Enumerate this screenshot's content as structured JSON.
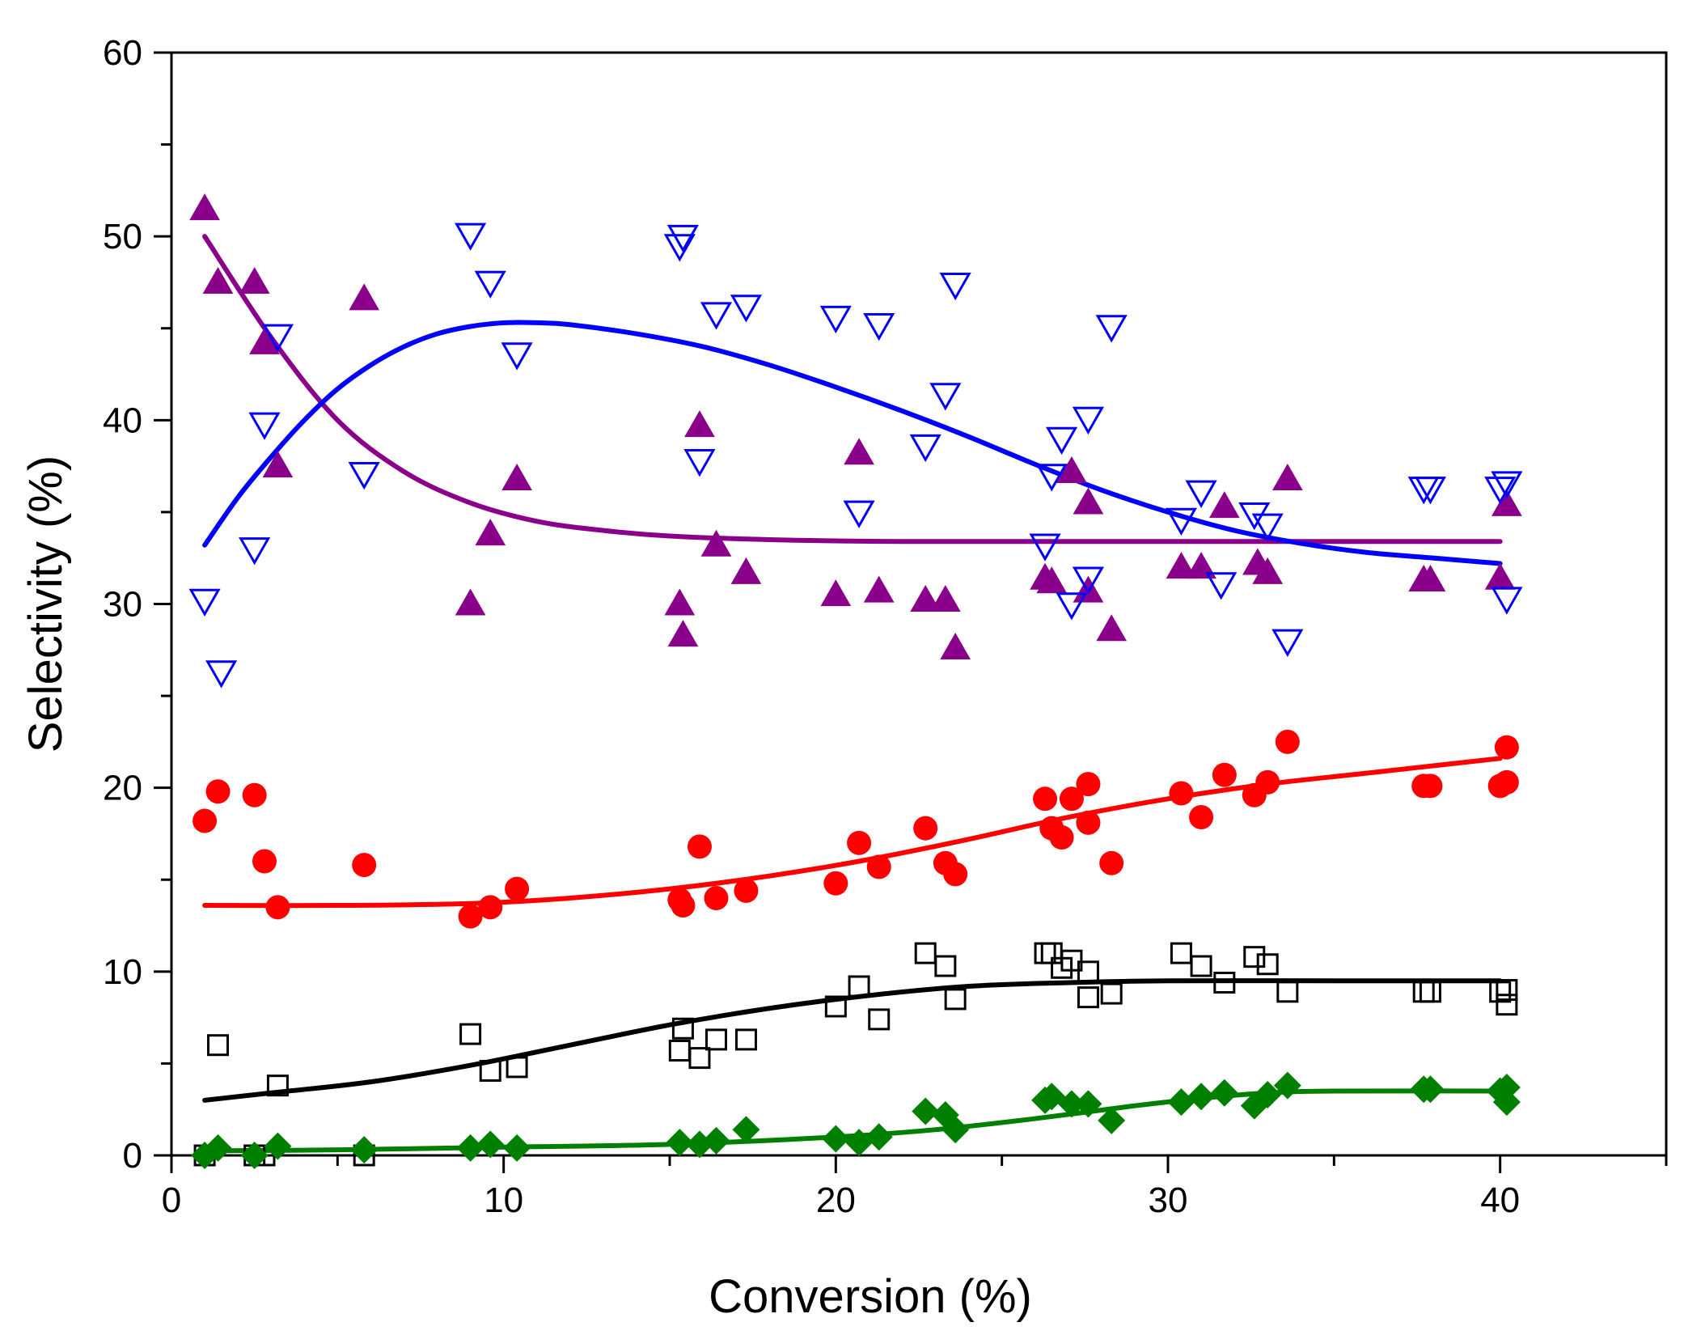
{
  "chart_data": {
    "type": "scatter",
    "title": "",
    "xlabel": "Conversion (%)",
    "ylabel": "Selectivity (%)",
    "xlim": [
      0,
      45
    ],
    "ylim": [
      0,
      60
    ],
    "xticks": [
      0,
      10,
      20,
      30,
      40
    ],
    "yticks": [
      0,
      10,
      20,
      30,
      40,
      50,
      60
    ],
    "grid": false,
    "legend": "none",
    "series": [
      {
        "name": "purple-filled-triangle",
        "marker": "triangle-up-filled",
        "color": "#8B008B",
        "points": [
          [
            1.0,
            51.5
          ],
          [
            1.4,
            47.5
          ],
          [
            2.5,
            47.5
          ],
          [
            2.8,
            44.2
          ],
          [
            3.2,
            37.5
          ],
          [
            5.8,
            46.6
          ],
          [
            9.0,
            30.0
          ],
          [
            9.6,
            33.8
          ],
          [
            10.4,
            36.8
          ],
          [
            15.3,
            30.0
          ],
          [
            15.4,
            28.3
          ],
          [
            15.9,
            39.7
          ],
          [
            16.4,
            33.2
          ],
          [
            17.3,
            31.7
          ],
          [
            20.0,
            30.5
          ],
          [
            20.7,
            38.2
          ],
          [
            21.3,
            30.7
          ],
          [
            22.7,
            30.2
          ],
          [
            23.3,
            30.2
          ],
          [
            23.6,
            27.6
          ],
          [
            26.3,
            31.4
          ],
          [
            26.5,
            31.2
          ],
          [
            27.1,
            37.2
          ],
          [
            27.6,
            35.5
          ],
          [
            27.6,
            30.7
          ],
          [
            28.3,
            28.6
          ],
          [
            30.4,
            32.0
          ],
          [
            31.0,
            32.0
          ],
          [
            31.7,
            35.3
          ],
          [
            32.7,
            32.2
          ],
          [
            33.0,
            31.7
          ],
          [
            33.6,
            36.8
          ],
          [
            37.7,
            31.3
          ],
          [
            37.9,
            31.3
          ],
          [
            40.0,
            31.4
          ],
          [
            40.2,
            35.4
          ]
        ],
        "fit": [
          [
            1.0,
            50.0
          ],
          [
            3.0,
            44.5
          ],
          [
            5.0,
            40.0
          ],
          [
            7.0,
            37.2
          ],
          [
            9.0,
            35.5
          ],
          [
            11.0,
            34.5
          ],
          [
            13.0,
            34.0
          ],
          [
            15.0,
            33.7
          ],
          [
            18.0,
            33.5
          ],
          [
            22.0,
            33.4
          ],
          [
            30.0,
            33.4
          ],
          [
            40.0,
            33.4
          ]
        ]
      },
      {
        "name": "blue-open-inverted-triangle",
        "marker": "triangle-down-open",
        "color": "#0000FF",
        "points": [
          [
            1.0,
            30.2
          ],
          [
            1.5,
            26.3
          ],
          [
            2.5,
            33.0
          ],
          [
            2.8,
            39.8
          ],
          [
            3.2,
            44.6
          ],
          [
            5.8,
            37.1
          ],
          [
            9.0,
            50.1
          ],
          [
            9.6,
            47.5
          ],
          [
            10.4,
            43.6
          ],
          [
            15.3,
            49.5
          ],
          [
            15.4,
            50.0
          ],
          [
            15.9,
            37.8
          ],
          [
            16.4,
            45.8
          ],
          [
            17.3,
            46.2
          ],
          [
            20.0,
            45.6
          ],
          [
            20.7,
            35.0
          ],
          [
            21.3,
            45.2
          ],
          [
            22.7,
            38.6
          ],
          [
            23.3,
            41.4
          ],
          [
            23.6,
            47.4
          ],
          [
            26.3,
            33.2
          ],
          [
            26.5,
            37.0
          ],
          [
            26.8,
            39.0
          ],
          [
            27.1,
            30.0
          ],
          [
            27.6,
            40.1
          ],
          [
            27.6,
            31.4
          ],
          [
            28.3,
            45.1
          ],
          [
            30.4,
            34.6
          ],
          [
            31.0,
            36.1
          ],
          [
            31.6,
            31.1
          ],
          [
            32.6,
            34.9
          ],
          [
            33.0,
            34.3
          ],
          [
            33.6,
            28.0
          ],
          [
            37.7,
            36.3
          ],
          [
            37.9,
            36.3
          ],
          [
            40.0,
            36.3
          ],
          [
            40.2,
            36.6
          ],
          [
            40.2,
            30.3
          ]
        ],
        "fit": [
          [
            1.0,
            33.2
          ],
          [
            2.0,
            35.8
          ],
          [
            3.0,
            38.0
          ],
          [
            4.0,
            40.0
          ],
          [
            5.0,
            41.7
          ],
          [
            6.0,
            43.0
          ],
          [
            7.0,
            44.0
          ],
          [
            8.0,
            44.7
          ],
          [
            9.0,
            45.1
          ],
          [
            10.0,
            45.3
          ],
          [
            11.0,
            45.3
          ],
          [
            12.0,
            45.2
          ],
          [
            14.0,
            44.7
          ],
          [
            16.0,
            44.0
          ],
          [
            18.0,
            43.0
          ],
          [
            20.0,
            41.8
          ],
          [
            22.0,
            40.5
          ],
          [
            24.0,
            39.1
          ],
          [
            26.0,
            37.6
          ],
          [
            28.0,
            36.2
          ],
          [
            30.0,
            35.0
          ],
          [
            32.0,
            34.0
          ],
          [
            34.0,
            33.3
          ],
          [
            36.0,
            32.8
          ],
          [
            38.0,
            32.5
          ],
          [
            40.0,
            32.2
          ]
        ]
      },
      {
        "name": "red-filled-circle",
        "marker": "circle-filled",
        "color": "#FF0000",
        "points": [
          [
            1.0,
            18.2
          ],
          [
            1.4,
            19.8
          ],
          [
            2.5,
            19.6
          ],
          [
            2.8,
            16.0
          ],
          [
            3.2,
            13.5
          ],
          [
            5.8,
            15.8
          ],
          [
            9.0,
            13.0
          ],
          [
            9.6,
            13.5
          ],
          [
            10.4,
            14.5
          ],
          [
            15.3,
            13.9
          ],
          [
            15.4,
            13.6
          ],
          [
            15.9,
            16.8
          ],
          [
            16.4,
            14.0
          ],
          [
            17.3,
            14.4
          ],
          [
            20.0,
            14.8
          ],
          [
            20.7,
            17.0
          ],
          [
            21.3,
            15.7
          ],
          [
            22.7,
            17.8
          ],
          [
            23.3,
            15.9
          ],
          [
            23.6,
            15.3
          ],
          [
            26.3,
            19.4
          ],
          [
            26.5,
            17.8
          ],
          [
            26.8,
            17.3
          ],
          [
            27.1,
            19.4
          ],
          [
            27.6,
            20.2
          ],
          [
            27.6,
            18.1
          ],
          [
            28.3,
            15.9
          ],
          [
            30.4,
            19.7
          ],
          [
            31.0,
            18.4
          ],
          [
            31.7,
            20.7
          ],
          [
            32.6,
            19.6
          ],
          [
            33.0,
            20.3
          ],
          [
            33.6,
            22.5
          ],
          [
            37.7,
            20.1
          ],
          [
            37.9,
            20.1
          ],
          [
            40.0,
            20.1
          ],
          [
            40.2,
            22.2
          ],
          [
            40.2,
            20.3
          ]
        ],
        "fit": [
          [
            1.0,
            13.6
          ],
          [
            5.0,
            13.6
          ],
          [
            9.0,
            13.7
          ],
          [
            12.0,
            14.0
          ],
          [
            15.0,
            14.5
          ],
          [
            18.0,
            15.2
          ],
          [
            21.0,
            16.1
          ],
          [
            24.0,
            17.2
          ],
          [
            27.0,
            18.4
          ],
          [
            30.0,
            19.4
          ],
          [
            33.0,
            20.2
          ],
          [
            36.0,
            20.8
          ],
          [
            40.0,
            21.6
          ]
        ]
      },
      {
        "name": "black-open-square",
        "marker": "square-open",
        "color": "#000000",
        "points": [
          [
            1.0,
            0.0
          ],
          [
            1.4,
            6.0
          ],
          [
            2.5,
            0.0
          ],
          [
            2.8,
            0.0
          ],
          [
            3.2,
            3.8
          ],
          [
            5.8,
            0.0
          ],
          [
            9.0,
            6.6
          ],
          [
            9.6,
            4.6
          ],
          [
            10.4,
            4.8
          ],
          [
            15.3,
            5.7
          ],
          [
            15.4,
            6.9
          ],
          [
            15.9,
            5.3
          ],
          [
            16.4,
            6.3
          ],
          [
            17.3,
            6.3
          ],
          [
            20.0,
            8.1
          ],
          [
            20.7,
            9.2
          ],
          [
            21.3,
            7.4
          ],
          [
            22.7,
            11.0
          ],
          [
            23.3,
            10.3
          ],
          [
            23.6,
            8.5
          ],
          [
            26.3,
            11.0
          ],
          [
            26.5,
            11.0
          ],
          [
            26.8,
            10.2
          ],
          [
            27.1,
            10.6
          ],
          [
            27.6,
            10.0
          ],
          [
            27.6,
            8.6
          ],
          [
            28.3,
            8.8
          ],
          [
            30.4,
            11.0
          ],
          [
            31.0,
            10.3
          ],
          [
            31.7,
            9.4
          ],
          [
            32.6,
            10.8
          ],
          [
            33.0,
            10.4
          ],
          [
            33.6,
            8.9
          ],
          [
            37.7,
            8.9
          ],
          [
            37.9,
            8.9
          ],
          [
            40.0,
            8.9
          ],
          [
            40.2,
            9.0
          ],
          [
            40.2,
            8.2
          ]
        ],
        "fit": [
          [
            1.0,
            3.0
          ],
          [
            3.0,
            3.4
          ],
          [
            6.0,
            4.0
          ],
          [
            9.0,
            4.9
          ],
          [
            12.0,
            6.0
          ],
          [
            15.0,
            7.1
          ],
          [
            18.0,
            8.0
          ],
          [
            21.0,
            8.7
          ],
          [
            24.0,
            9.2
          ],
          [
            27.0,
            9.4
          ],
          [
            30.0,
            9.5
          ],
          [
            35.0,
            9.5
          ],
          [
            40.0,
            9.5
          ]
        ]
      },
      {
        "name": "green-filled-diamond",
        "marker": "diamond-filled",
        "color": "#008000",
        "points": [
          [
            1.0,
            0.0
          ],
          [
            1.4,
            0.4
          ],
          [
            2.5,
            0.0
          ],
          [
            3.2,
            0.5
          ],
          [
            5.8,
            0.3
          ],
          [
            9.0,
            0.4
          ],
          [
            9.6,
            0.6
          ],
          [
            10.4,
            0.4
          ],
          [
            15.3,
            0.7
          ],
          [
            15.9,
            0.6
          ],
          [
            16.4,
            0.8
          ],
          [
            17.3,
            1.4
          ],
          [
            20.0,
            0.9
          ],
          [
            20.7,
            0.7
          ],
          [
            21.3,
            1.0
          ],
          [
            22.7,
            2.4
          ],
          [
            23.3,
            2.2
          ],
          [
            23.6,
            1.4
          ],
          [
            26.3,
            3.0
          ],
          [
            26.5,
            3.2
          ],
          [
            27.1,
            2.8
          ],
          [
            27.6,
            2.8
          ],
          [
            28.3,
            1.9
          ],
          [
            30.4,
            2.9
          ],
          [
            31.0,
            3.2
          ],
          [
            31.7,
            3.4
          ],
          [
            32.6,
            2.7
          ],
          [
            33.0,
            3.3
          ],
          [
            33.6,
            3.8
          ],
          [
            37.7,
            3.6
          ],
          [
            37.9,
            3.6
          ],
          [
            40.0,
            3.5
          ],
          [
            40.2,
            3.7
          ],
          [
            40.2,
            2.9
          ]
        ],
        "fit": [
          [
            1.0,
            0.25
          ],
          [
            5.0,
            0.3
          ],
          [
            10.0,
            0.45
          ],
          [
            15.0,
            0.6
          ],
          [
            20.0,
            1.0
          ],
          [
            23.0,
            1.4
          ],
          [
            26.0,
            2.0
          ],
          [
            29.0,
            2.7
          ],
          [
            31.0,
            3.1
          ],
          [
            33.0,
            3.4
          ],
          [
            35.0,
            3.5
          ],
          [
            40.0,
            3.5
          ]
        ]
      }
    ]
  }
}
